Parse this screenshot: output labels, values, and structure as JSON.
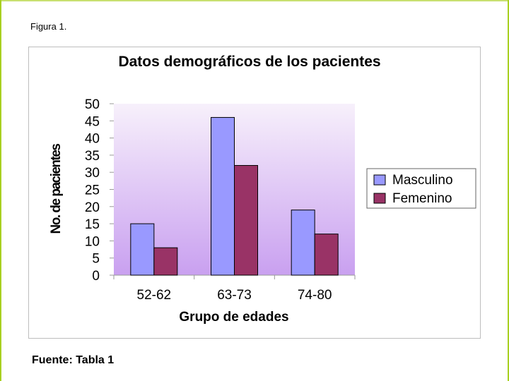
{
  "caption": "Figura 1.",
  "source": "Fuente: Tabla 1",
  "chart_data": {
    "type": "bar",
    "title": "Datos demográficos de los pacientes",
    "xlabel": "Grupo de edades",
    "ylabel": "No. de pacientes",
    "categories": [
      "52-62",
      "63-73",
      "74-80"
    ],
    "series": [
      {
        "name": "Masculino",
        "values": [
          15,
          46,
          19
        ],
        "color": "#9999ff"
      },
      {
        "name": "Femenino",
        "values": [
          8,
          32,
          12
        ],
        "color": "#993366"
      }
    ],
    "ylim": [
      0,
      50
    ],
    "yticks": [
      0,
      5,
      10,
      15,
      20,
      25,
      30,
      35,
      40,
      45,
      50
    ],
    "grid": false,
    "legend": "right",
    "plot_background": [
      "#f7f0fb",
      "#c9a0f0"
    ]
  }
}
